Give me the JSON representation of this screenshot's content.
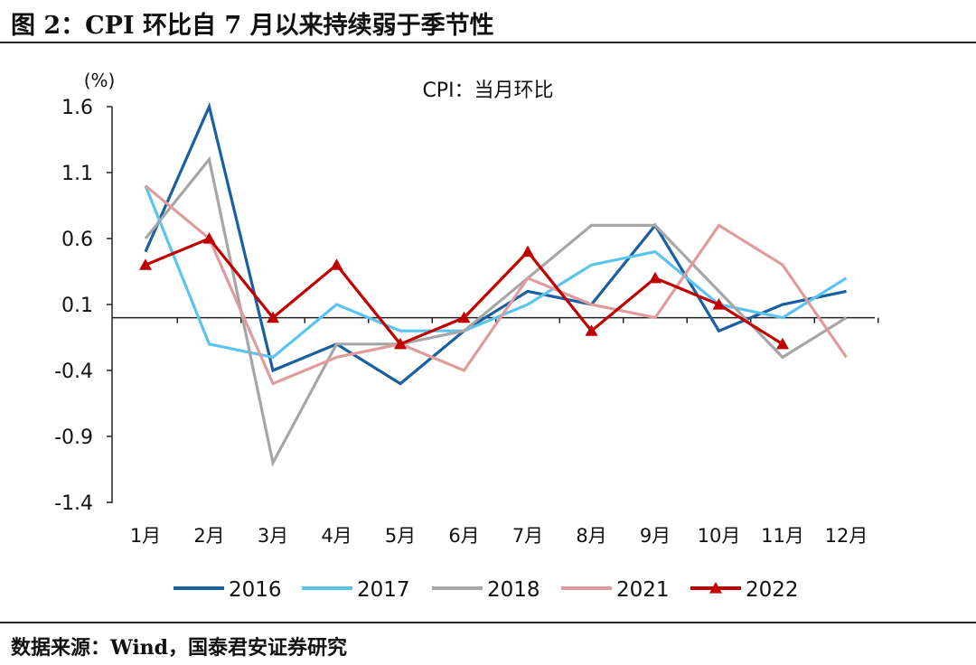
{
  "figure": {
    "title": "图 2：CPI 环比自 7 月以来持续弱于季节性",
    "source": "数据来源：Wind，国泰君安证券研究"
  },
  "chart_data": {
    "type": "line",
    "title": "CPI：当月环比",
    "ylabel": "(%)",
    "xlabel": "",
    "categories": [
      "1月",
      "2月",
      "3月",
      "4月",
      "5月",
      "6月",
      "7月",
      "8月",
      "9月",
      "10月",
      "11月",
      "12月"
    ],
    "yticks": [
      1.6,
      1.1,
      0.6,
      0.1,
      -0.4,
      -0.9,
      -1.4
    ],
    "ytick_labels": [
      "1.6",
      "1.1",
      "0.6",
      "0.1",
      "-0.4",
      "-0.9",
      "-1.4"
    ],
    "ylim": [
      -1.4,
      1.6
    ],
    "baseline": 0,
    "legend_position": "bottom",
    "series": [
      {
        "name": "2016",
        "color": "#1a5fa0",
        "marker": "none",
        "values": [
          0.5,
          1.6,
          -0.4,
          -0.2,
          -0.5,
          -0.1,
          0.2,
          0.1,
          0.7,
          -0.1,
          0.1,
          0.2
        ]
      },
      {
        "name": "2017",
        "color": "#5bc4ee",
        "marker": "none",
        "values": [
          1.0,
          -0.2,
          -0.3,
          0.1,
          -0.1,
          -0.1,
          0.1,
          0.4,
          0.5,
          0.1,
          0.0,
          0.3
        ]
      },
      {
        "name": "2018",
        "color": "#a6a6a6",
        "marker": "none",
        "values": [
          0.6,
          1.2,
          -1.1,
          -0.2,
          -0.2,
          -0.1,
          0.3,
          0.7,
          0.7,
          0.2,
          -0.3,
          0.0
        ]
      },
      {
        "name": "2021",
        "color": "#e09c9c",
        "marker": "none",
        "values": [
          1.0,
          0.6,
          -0.5,
          -0.3,
          -0.2,
          -0.4,
          0.3,
          0.1,
          0.0,
          0.7,
          0.4,
          -0.3
        ]
      },
      {
        "name": "2022",
        "color": "#c00000",
        "marker": "triangle",
        "values": [
          0.4,
          0.6,
          0.0,
          0.4,
          -0.2,
          0.0,
          0.5,
          -0.1,
          0.3,
          0.1,
          -0.2,
          null
        ]
      }
    ]
  }
}
